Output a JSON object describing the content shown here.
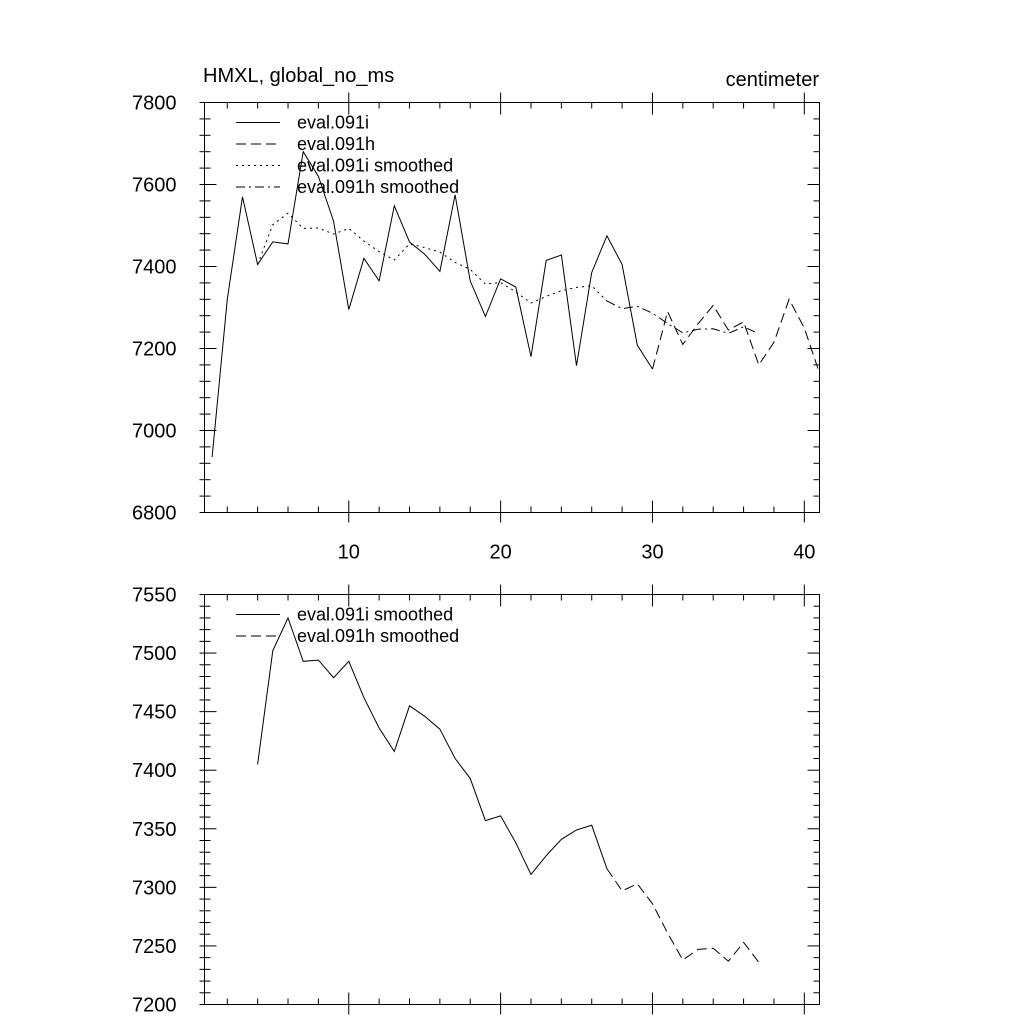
{
  "chart_data": [
    {
      "type": "line",
      "title": "HMXL, global_no_ms",
      "units_label": "centimeter",
      "xlabel": "",
      "ylabel": "",
      "xlim": [
        0.5,
        41
      ],
      "ylim": [
        6800,
        7800
      ],
      "xticks": [
        10,
        20,
        30,
        40
      ],
      "xtick_labels": [
        "10",
        "20",
        "30",
        "40"
      ],
      "yticks": [
        6800,
        7000,
        7200,
        7400,
        7600,
        7800
      ],
      "ytick_labels": [
        "6800",
        "7000",
        "7200",
        "7400",
        "7600",
        "7800"
      ],
      "grid": false,
      "legend_position": "top-left",
      "series": [
        {
          "name": "eval.091i",
          "dash": "solid",
          "x": [
            1,
            2,
            3,
            4,
            5,
            6,
            7,
            8,
            9,
            10,
            11,
            12,
            13,
            14,
            15,
            16,
            17,
            18,
            19,
            20,
            21,
            22,
            23,
            24,
            25,
            26,
            27,
            28,
            29,
            30
          ],
          "values": [
            6935,
            7320,
            7570,
            7405,
            7460,
            7455,
            7680,
            7620,
            7510,
            7295,
            7420,
            7365,
            7548,
            7460,
            7430,
            7388,
            7575,
            7365,
            7278,
            7370,
            7350,
            7180,
            7415,
            7428,
            7158,
            7385,
            7475,
            7405,
            7208,
            7150
          ]
        },
        {
          "name": "eval.091h",
          "dash": "longdash",
          "x": [
            30,
            31,
            32,
            33,
            34,
            35,
            36,
            37,
            38,
            39,
            40,
            41
          ],
          "values": [
            7150,
            7290,
            7210,
            7260,
            7305,
            7245,
            7265,
            7160,
            7215,
            7320,
            7250,
            7140
          ]
        },
        {
          "name": "eval.091i smoothed",
          "dash": "dot",
          "x": [
            4,
            5,
            6,
            7,
            8,
            9,
            10,
            11,
            12,
            13,
            14,
            15,
            16,
            17,
            18,
            19,
            20,
            21,
            22,
            23,
            24,
            25,
            26,
            27
          ],
          "values": [
            7405,
            7502,
            7530,
            7493,
            7494,
            7479,
            7493,
            7462,
            7436,
            7416,
            7455,
            7446,
            7435,
            7410,
            7393,
            7357,
            7361,
            7338,
            7311,
            7327,
            7341,
            7349,
            7353,
            7316
          ]
        },
        {
          "name": "eval.091h smoothed",
          "dash": "dashdot",
          "x": [
            27,
            28,
            29,
            30,
            31,
            32,
            33,
            34,
            35,
            36,
            37
          ],
          "values": [
            7316,
            7297,
            7303,
            7286,
            7261,
            7238,
            7247,
            7248,
            7237,
            7253,
            7236
          ]
        }
      ]
    },
    {
      "type": "line",
      "title": "",
      "xlabel": "",
      "ylabel": "",
      "xlim": [
        0.5,
        41
      ],
      "ylim": [
        7200,
        7550
      ],
      "xticks": [
        10,
        20,
        30,
        40
      ],
      "yticks": [
        7200,
        7250,
        7300,
        7350,
        7400,
        7450,
        7500,
        7550
      ],
      "ytick_labels": [
        "7200",
        "7250",
        "7300",
        "7350",
        "7400",
        "7450",
        "7500",
        "7550"
      ],
      "grid": false,
      "legend_position": "top-left",
      "series": [
        {
          "name": "eval.091i smoothed",
          "dash": "solid",
          "x": [
            4,
            5,
            6,
            7,
            8,
            9,
            10,
            11,
            12,
            13,
            14,
            15,
            16,
            17,
            18,
            19,
            20,
            21,
            22,
            23,
            24,
            25,
            26,
            27
          ],
          "values": [
            7405,
            7502,
            7530,
            7493,
            7494,
            7479,
            7493,
            7462,
            7436,
            7416,
            7455,
            7446,
            7435,
            7410,
            7393,
            7357,
            7361,
            7338,
            7311,
            7327,
            7341,
            7349,
            7353,
            7316
          ]
        },
        {
          "name": "eval.091h smoothed",
          "dash": "longdash",
          "x": [
            27,
            28,
            29,
            30,
            31,
            32,
            33,
            34,
            35,
            36,
            37
          ],
          "values": [
            7316,
            7297,
            7303,
            7286,
            7261,
            7238,
            7247,
            7248,
            7237,
            7253,
            7236
          ]
        }
      ]
    }
  ]
}
